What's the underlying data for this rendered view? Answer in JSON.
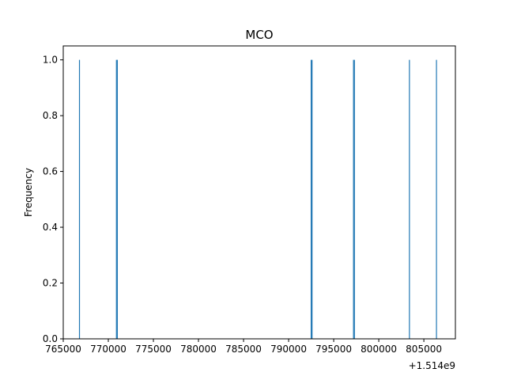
{
  "chart_data": {
    "type": "bar",
    "title": "MCO",
    "xlabel": "",
    "ylabel": "Frequency",
    "x_offset_label": "+1.514e9",
    "xlim": [
      765000,
      808500
    ],
    "ylim": [
      0,
      1.05
    ],
    "xticks": [
      765000,
      770000,
      775000,
      780000,
      785000,
      790000,
      795000,
      800000,
      805000
    ],
    "xtick_labels": [
      "765000",
      "770000",
      "775000",
      "780000",
      "785000",
      "790000",
      "795000",
      "800000",
      "805000"
    ],
    "yticks": [
      0.0,
      0.2,
      0.4,
      0.6,
      0.8,
      1.0
    ],
    "ytick_labels": [
      "0.0",
      "0.2",
      "0.4",
      "0.6",
      "0.8",
      "1.0"
    ],
    "grid": false,
    "bar_color": "#1f77b4",
    "bars": [
      {
        "x": 766800,
        "value": 1
      },
      {
        "x": 770900,
        "value": 1
      },
      {
        "x": 771000,
        "value": 1
      },
      {
        "x": 792500,
        "value": 1
      },
      {
        "x": 792600,
        "value": 1
      },
      {
        "x": 797200,
        "value": 1
      },
      {
        "x": 797300,
        "value": 1
      },
      {
        "x": 803400,
        "value": 1
      },
      {
        "x": 806400,
        "value": 1
      }
    ]
  }
}
